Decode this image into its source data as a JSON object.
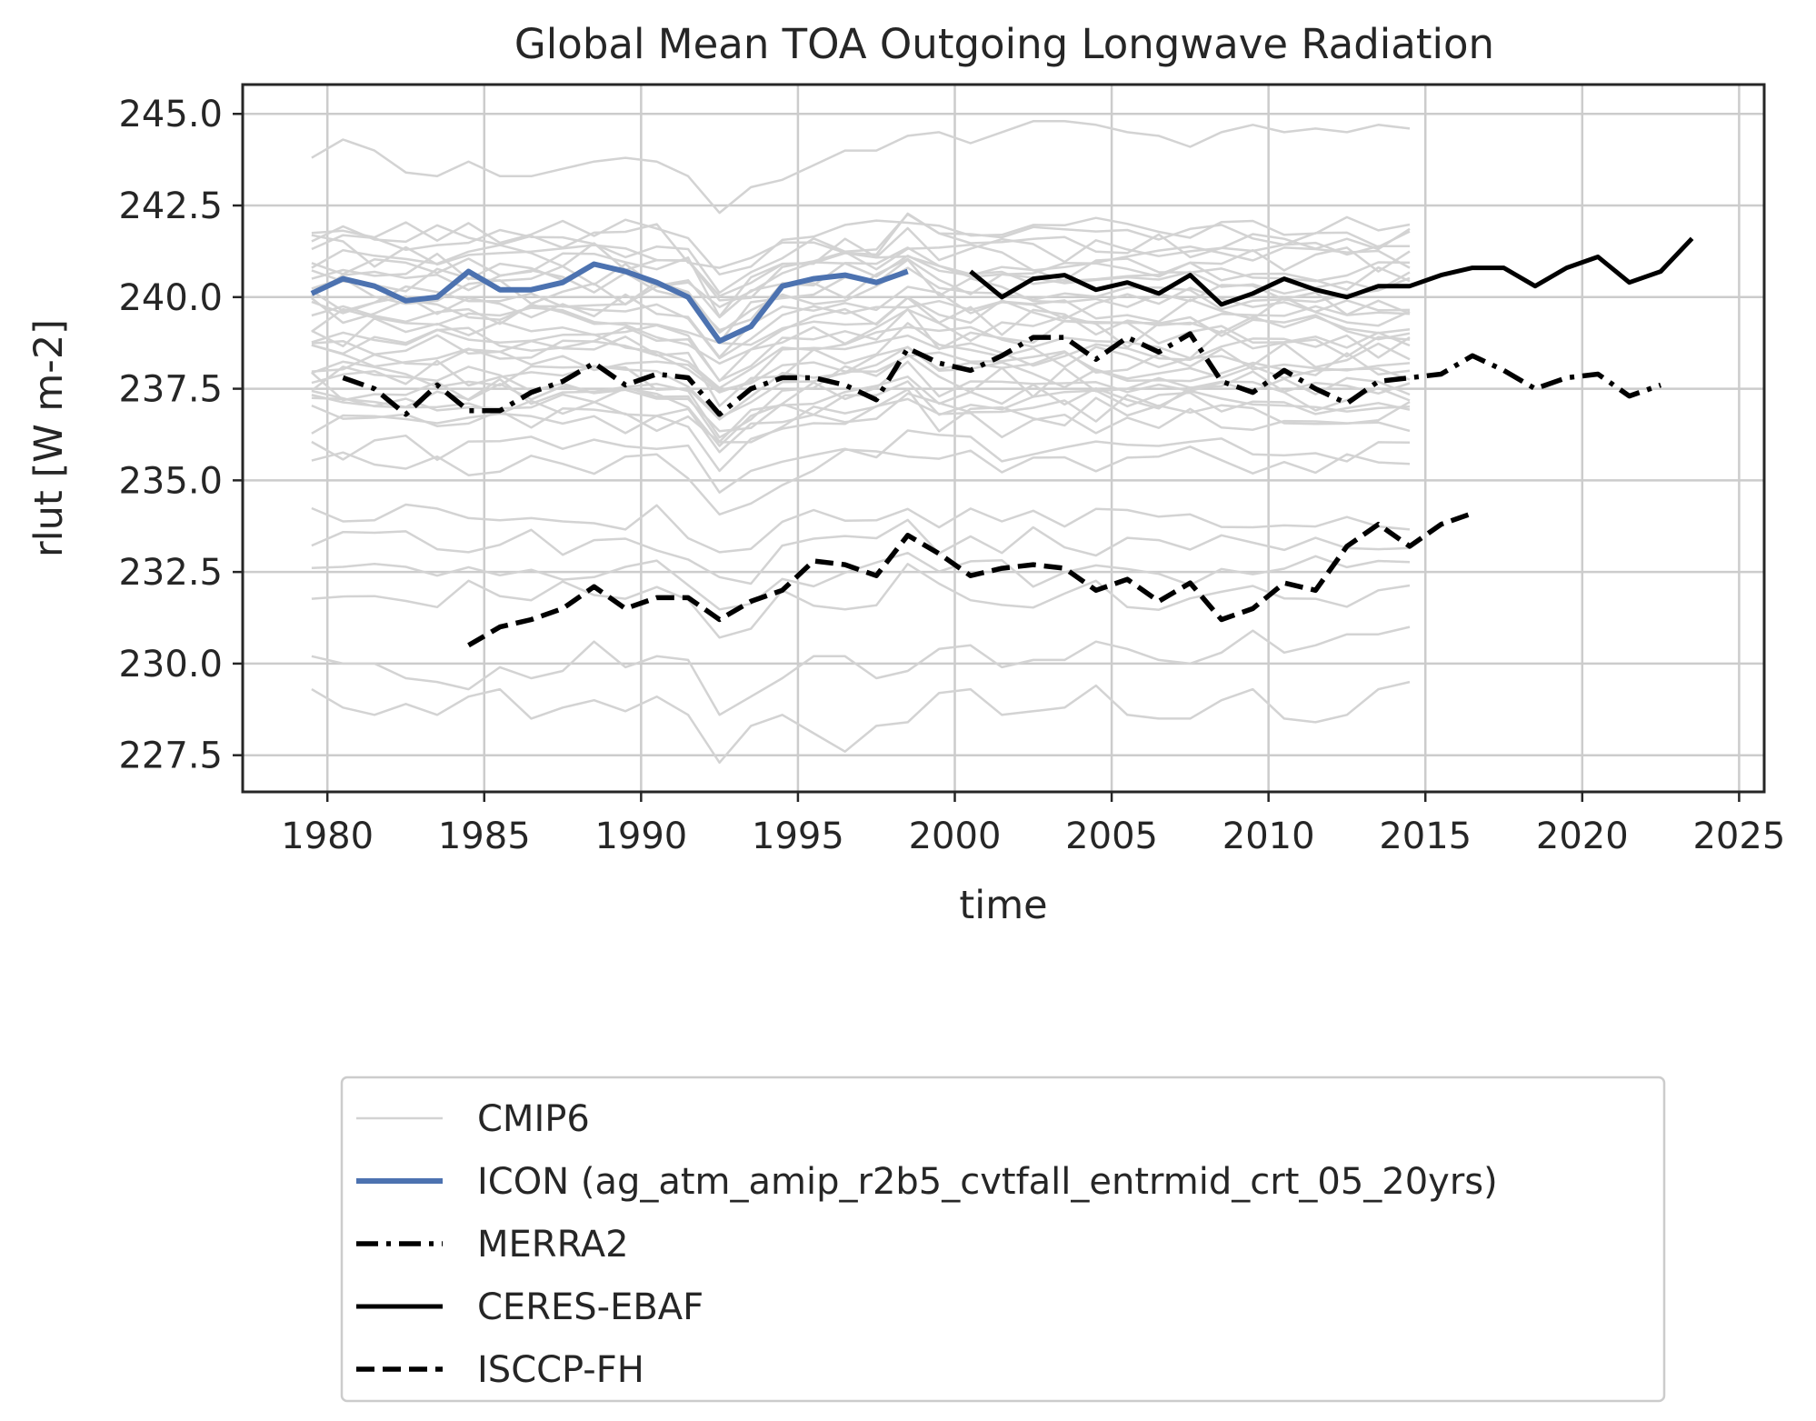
{
  "chart_data": {
    "type": "line",
    "title": "Global Mean TOA Outgoing Longwave Radiation",
    "xlabel": "time",
    "ylabel": "rlut [W m-2]",
    "xlim": [
      1977.3,
      2025.8
    ],
    "ylim": [
      226.5,
      245.8
    ],
    "xticks": [
      1980,
      1985,
      1990,
      1995,
      2000,
      2005,
      2010,
      2015,
      2020,
      2025
    ],
    "yticks": [
      227.5,
      230.0,
      232.5,
      235.0,
      237.5,
      240.0,
      242.5,
      245.0
    ],
    "ytick_labels": [
      "227.5",
      "230.0",
      "232.5",
      "235.0",
      "237.5",
      "240.0",
      "242.5",
      "245.0"
    ],
    "grid": true,
    "legend_position": "below",
    "colors": {
      "cmip6": "#d3d3d3",
      "icon": "#4c72b0",
      "obs": "#000000",
      "grid": "#cccccc",
      "axes": "#262626"
    },
    "cmip6_ensemble": {
      "name": "CMIP6",
      "x_start": 1979.5,
      "x_end": 2014.5,
      "count": 36,
      "notable_members": [
        {
          "x": [
            1979.5,
            1980.5,
            1981.5,
            1982.5,
            1983.5,
            1984.5,
            1985.5,
            1986.5,
            1987.5,
            1988.5,
            1989.5,
            1990.5,
            1991.5,
            1992.5,
            1993.5,
            1994.5,
            1995.5,
            1996.5,
            1997.5,
            1998.5,
            1999.5,
            2000.5,
            2001.5,
            2002.5,
            2003.5,
            2004.5,
            2005.5,
            2006.5,
            2007.5,
            2008.5,
            2009.5,
            2010.5,
            2011.5,
            2012.5,
            2013.5,
            2014.5
          ],
          "values": [
            243.8,
            244.3,
            244.0,
            243.4,
            243.3,
            243.7,
            243.3,
            243.3,
            243.5,
            243.7,
            243.8,
            243.7,
            243.3,
            242.3,
            243.0,
            243.2,
            243.6,
            244.0,
            244.0,
            244.4,
            244.5,
            244.2,
            244.5,
            244.8,
            244.8,
            244.7,
            244.5,
            244.4,
            244.1,
            244.5,
            244.7,
            244.5,
            244.6,
            244.5,
            244.7,
            244.6
          ]
        },
        {
          "x": [
            1979.5,
            1980.5,
            1981.5,
            1982.5,
            1983.5,
            1984.5,
            1985.5,
            1986.5,
            1987.5,
            1988.5,
            1989.5,
            1990.5,
            1991.5,
            1992.5,
            1993.5,
            1994.5,
            1995.5,
            1996.5,
            1997.5,
            1998.5,
            1999.5,
            2000.5,
            2001.5,
            2002.5,
            2003.5,
            2004.5,
            2005.5,
            2006.5,
            2007.5,
            2008.5,
            2009.5,
            2010.5,
            2011.5,
            2012.5,
            2013.5,
            2014.5
          ],
          "values": [
            229.3,
            228.8,
            228.6,
            228.9,
            228.6,
            229.1,
            229.3,
            228.5,
            228.8,
            229.0,
            228.7,
            229.1,
            228.6,
            227.3,
            228.3,
            228.6,
            228.1,
            227.6,
            228.3,
            228.4,
            229.2,
            229.3,
            228.6,
            228.7,
            228.8,
            229.4,
            228.6,
            228.5,
            228.5,
            229.0,
            229.3,
            228.5,
            228.4,
            228.6,
            229.3,
            229.5
          ]
        },
        {
          "x": [
            1979.5,
            1980.5,
            1981.5,
            1982.5,
            1983.5,
            1984.5,
            1985.5,
            1986.5,
            1987.5,
            1988.5,
            1989.5,
            1990.5,
            1991.5,
            1992.5,
            1993.5,
            1994.5,
            1995.5,
            1996.5,
            1997.5,
            1998.5,
            1999.5,
            2000.5,
            2001.5,
            2002.5,
            2003.5,
            2004.5,
            2005.5,
            2006.5,
            2007.5,
            2008.5,
            2009.5,
            2010.5,
            2011.5,
            2012.5,
            2013.5,
            2014.5
          ],
          "values": [
            230.2,
            230.0,
            230.0,
            229.6,
            229.5,
            229.3,
            229.9,
            229.6,
            229.8,
            230.6,
            229.9,
            230.2,
            230.1,
            228.6,
            229.1,
            229.6,
            230.2,
            230.2,
            229.6,
            229.8,
            230.4,
            230.5,
            229.9,
            230.1,
            230.1,
            230.6,
            230.4,
            230.1,
            230.0,
            230.3,
            230.9,
            230.3,
            230.5,
            230.8,
            230.8,
            231.0
          ]
        }
      ]
    },
    "series": [
      {
        "name": "ICON (ag_atm_amip_r2b5_cvtfall_entrmid_crt_05_20yrs)",
        "style": "solid-thick",
        "x": [
          1979.5,
          1980.5,
          1981.5,
          1982.5,
          1983.5,
          1984.5,
          1985.5,
          1986.5,
          1987.5,
          1988.5,
          1989.5,
          1990.5,
          1991.5,
          1992.5,
          1993.5,
          1994.5,
          1995.5,
          1996.5,
          1997.5,
          1998.5
        ],
        "values": [
          240.1,
          240.5,
          240.3,
          239.9,
          240.0,
          240.7,
          240.2,
          240.2,
          240.4,
          240.9,
          240.7,
          240.4,
          240.0,
          238.8,
          239.2,
          240.3,
          240.5,
          240.6,
          240.4,
          240.7
        ]
      },
      {
        "name": "MERRA2",
        "style": "dashdot",
        "x": [
          1980.5,
          1981.5,
          1982.5,
          1983.5,
          1984.5,
          1985.5,
          1986.5,
          1987.5,
          1988.5,
          1989.5,
          1990.5,
          1991.5,
          1992.5,
          1993.5,
          1994.5,
          1995.5,
          1996.5,
          1997.5,
          1998.5,
          1999.5,
          2000.5,
          2001.5,
          2002.5,
          2003.5,
          2004.5,
          2005.5,
          2006.5,
          2007.5,
          2008.5,
          2009.5,
          2010.5,
          2011.5,
          2012.5,
          2013.5,
          2014.5,
          2015.5,
          2016.5,
          2017.5,
          2018.5,
          2019.5,
          2020.5,
          2021.5,
          2022.5
        ],
        "values": [
          237.8,
          237.5,
          236.8,
          237.6,
          236.9,
          236.9,
          237.4,
          237.7,
          238.2,
          237.6,
          237.9,
          237.8,
          236.8,
          237.5,
          237.8,
          237.8,
          237.6,
          237.2,
          238.6,
          238.2,
          238.0,
          238.4,
          238.9,
          238.9,
          238.3,
          238.9,
          238.5,
          239.0,
          237.7,
          237.4,
          238.0,
          237.5,
          237.1,
          237.7,
          237.8,
          237.9,
          238.4,
          238.0,
          237.5,
          237.8,
          237.9,
          237.3,
          237.6
        ]
      },
      {
        "name": "CERES-EBAF",
        "style": "solid",
        "x": [
          2000.5,
          2001.5,
          2002.5,
          2003.5,
          2004.5,
          2005.5,
          2006.5,
          2007.5,
          2008.5,
          2009.5,
          2010.5,
          2011.5,
          2012.5,
          2013.5,
          2014.5,
          2015.5,
          2016.5,
          2017.5,
          2018.5,
          2019.5,
          2020.5,
          2021.5,
          2022.5,
          2023.5
        ],
        "values": [
          240.7,
          240.0,
          240.5,
          240.6,
          240.2,
          240.4,
          240.1,
          240.6,
          239.8,
          240.1,
          240.5,
          240.2,
          240.0,
          240.3,
          240.3,
          240.6,
          240.8,
          240.8,
          240.3,
          240.8,
          241.1,
          240.4,
          240.7,
          241.6
        ]
      },
      {
        "name": "ISCCP-FH",
        "style": "dashed",
        "x": [
          1984.5,
          1985.5,
          1986.5,
          1987.5,
          1988.5,
          1989.5,
          1990.5,
          1991.5,
          1992.5,
          1993.5,
          1994.5,
          1995.5,
          1996.5,
          1997.5,
          1998.5,
          1999.5,
          2000.5,
          2001.5,
          2002.5,
          2003.5,
          2004.5,
          2005.5,
          2006.5,
          2007.5,
          2008.5,
          2009.5,
          2010.5,
          2011.5,
          2012.5,
          2013.5,
          2014.5,
          2015.5,
          2016.5
        ],
        "values": [
          230.5,
          231.0,
          231.2,
          231.5,
          232.1,
          231.5,
          231.8,
          231.8,
          231.2,
          231.7,
          232.0,
          232.8,
          232.7,
          232.4,
          233.5,
          233.0,
          232.4,
          232.6,
          232.7,
          232.6,
          232.0,
          232.3,
          231.7,
          232.2,
          231.2,
          231.5,
          232.2,
          232.0,
          233.2,
          233.8,
          233.2,
          233.8,
          234.1
        ]
      }
    ],
    "legend": [
      {
        "label": "CMIP6",
        "style": "cmip6"
      },
      {
        "label": "ICON (ag_atm_amip_r2b5_cvtfall_entrmid_crt_05_20yrs)",
        "style": "icon"
      },
      {
        "label": "MERRA2",
        "style": "dashdot"
      },
      {
        "label": "CERES-EBAF",
        "style": "solid"
      },
      {
        "label": "ISCCP-FH",
        "style": "dashed"
      }
    ]
  }
}
